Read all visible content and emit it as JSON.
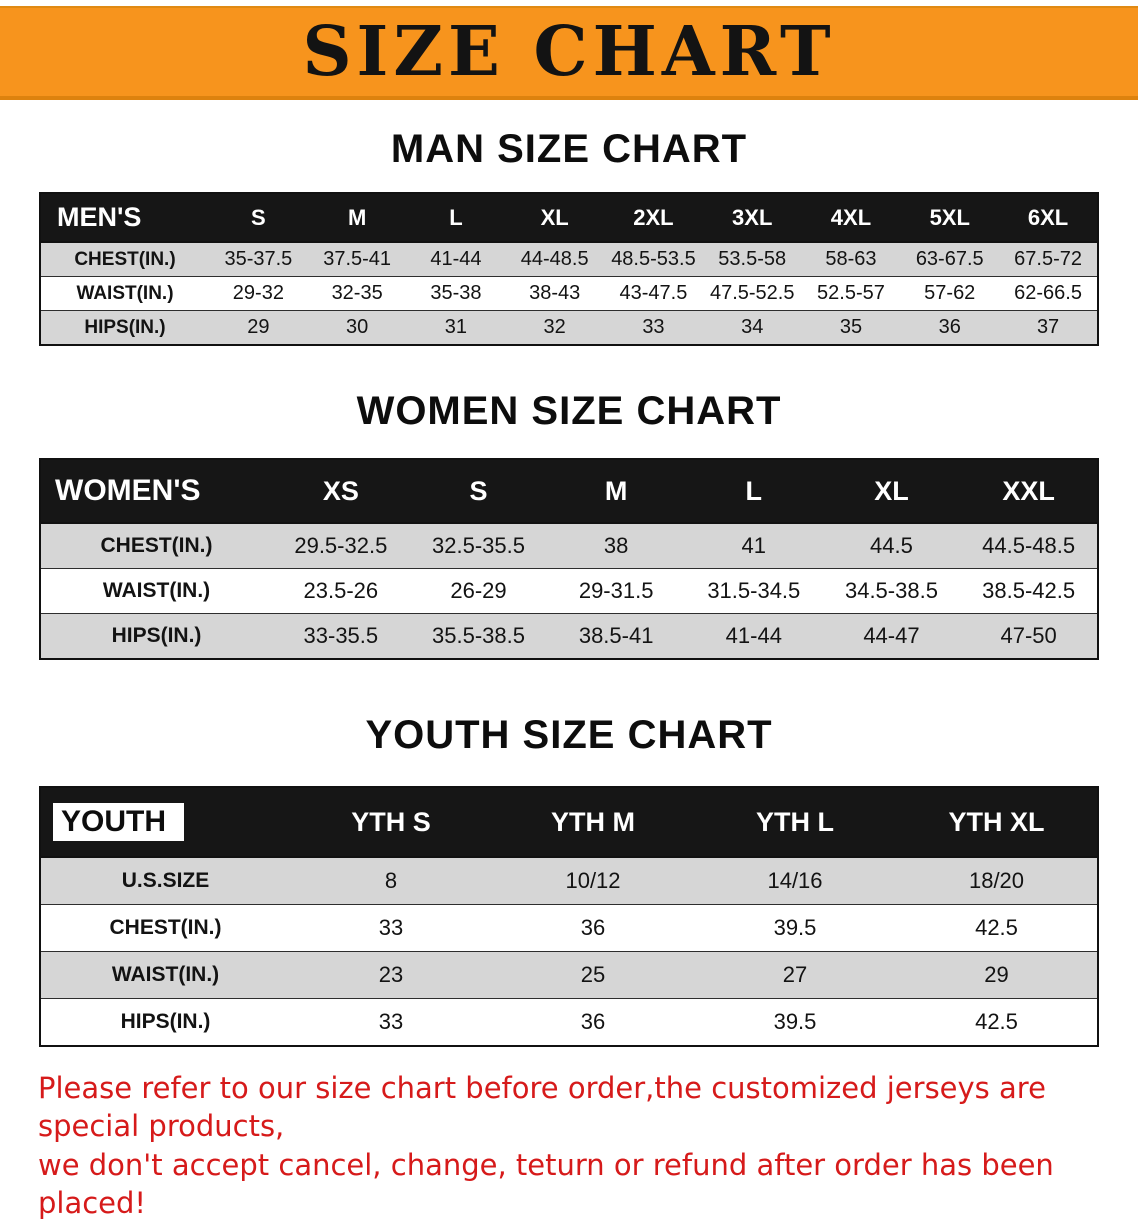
{
  "banner": {
    "title": "SIZE CHART"
  },
  "sections": {
    "men": {
      "heading": "MAN SIZE CHART",
      "table": {
        "header": [
          "MEN'S",
          "S",
          "M",
          "L",
          "XL",
          "2XL",
          "3XL",
          "4XL",
          "5XL",
          "6XL"
        ],
        "rows": [
          [
            "CHEST(IN.)",
            "35-37.5",
            "37.5-41",
            "41-44",
            "44-48.5",
            "48.5-53.5",
            "53.5-58",
            "58-63",
            "63-67.5",
            "67.5-72"
          ],
          [
            "WAIST(IN.)",
            "29-32",
            "32-35",
            "35-38",
            "38-43",
            "43-47.5",
            "47.5-52.5",
            "52.5-57",
            "57-62",
            "62-66.5"
          ],
          [
            "HIPS(IN.)",
            "29",
            "30",
            "31",
            "32",
            "33",
            "34",
            "35",
            "36",
            "37"
          ]
        ]
      }
    },
    "women": {
      "heading": "WOMEN SIZE CHART",
      "table": {
        "header": [
          "WOMEN'S",
          "XS",
          "S",
          "M",
          "L",
          "XL",
          "XXL"
        ],
        "rows": [
          [
            "CHEST(IN.)",
            "29.5-32.5",
            "32.5-35.5",
            "38",
            "41",
            "44.5",
            "44.5-48.5"
          ],
          [
            "WAIST(IN.)",
            "23.5-26",
            "26-29",
            "29-31.5",
            "31.5-34.5",
            "34.5-38.5",
            "38.5-42.5"
          ],
          [
            "HIPS(IN.)",
            "33-35.5",
            "35.5-38.5",
            "38.5-41",
            "41-44",
            "44-47",
            "47-50"
          ]
        ]
      }
    },
    "youth": {
      "heading": "YOUTH SIZE CHART",
      "table": {
        "header": [
          "YOUTH",
          "YTH S",
          "YTH M",
          "YTH L",
          "YTH XL"
        ],
        "rows": [
          [
            "U.S.SIZE",
            "8",
            "10/12",
            "14/16",
            "18/20"
          ],
          [
            "CHEST(IN.)",
            "33",
            "36",
            "39.5",
            "42.5"
          ],
          [
            "WAIST(IN.)",
            "23",
            "25",
            "27",
            "29"
          ],
          [
            "HIPS(IN.)",
            "33",
            "36",
            "39.5",
            "42.5"
          ]
        ]
      }
    }
  },
  "footer": {
    "line1": "Please refer to our size chart before order,the customized jerseys are special products,",
    "line2": "we don't accept cancel, change, teturn or refund after order has been placed!"
  },
  "colors": {
    "banner_bg": "#f7941d",
    "table_header_bg": "#161616",
    "row_alt_gray": "#d6d6d6",
    "note_red": "#d61a1a"
  }
}
